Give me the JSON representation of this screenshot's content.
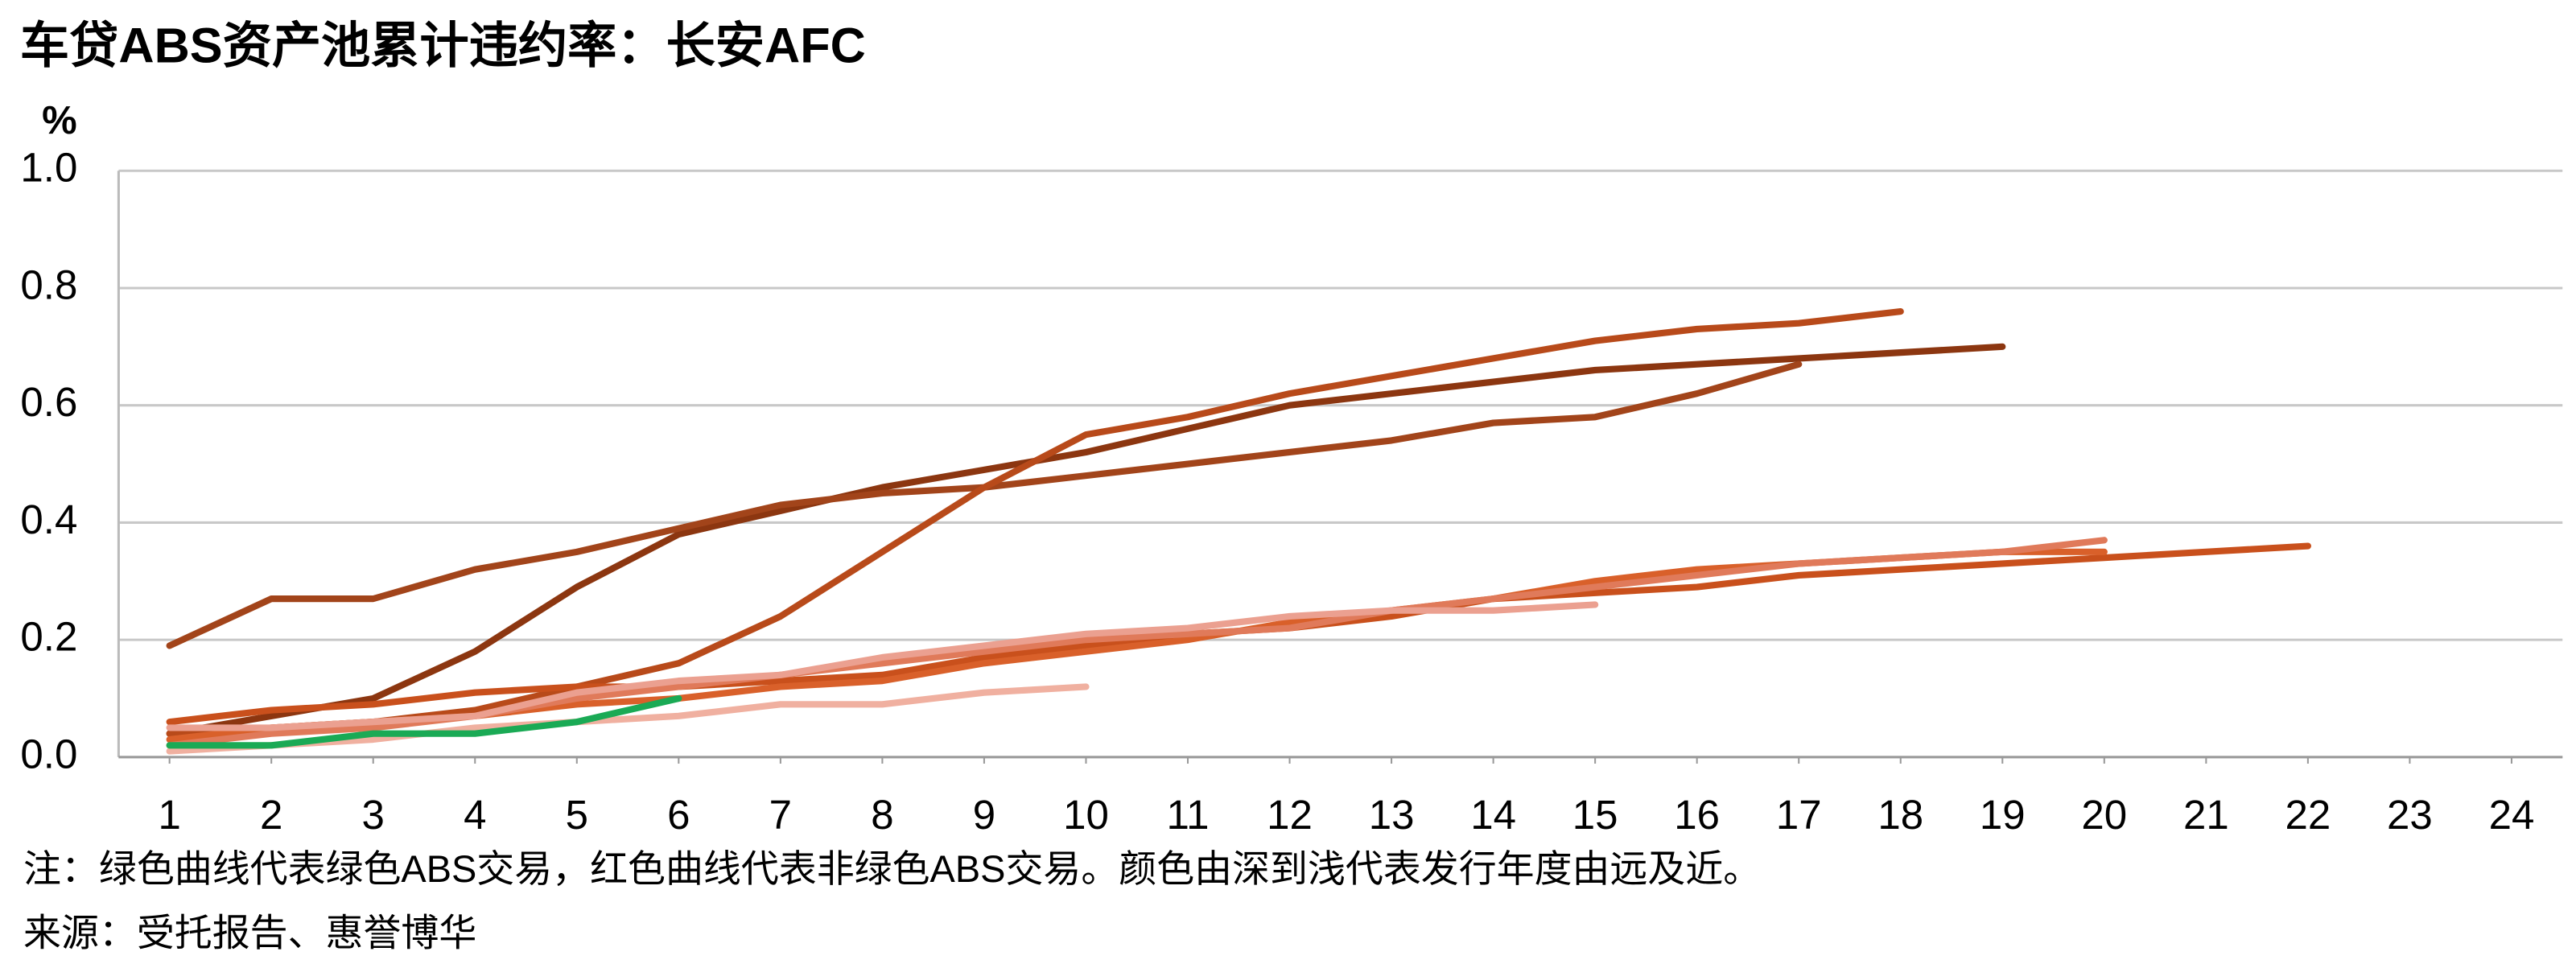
{
  "chart_data": {
    "type": "line",
    "title": "车贷ABS资产池累计违约率：长安AFC",
    "y_unit": "%",
    "note": "注：绿色曲线代表绿色ABS交易，红色曲线代表非绿色ABS交易。颜色由深到浅代表发行年度由远及近。",
    "source": "来源：受托报告、惠誉博华",
    "x": [
      1,
      2,
      3,
      4,
      5,
      6,
      7,
      8,
      9,
      10,
      11,
      12,
      13,
      14,
      15,
      16,
      17,
      18,
      19,
      20,
      21,
      22,
      23,
      24
    ],
    "xlim": [
      0.5,
      24.5
    ],
    "xticks": [
      1,
      2,
      3,
      4,
      5,
      6,
      7,
      8,
      9,
      10,
      11,
      12,
      13,
      14,
      15,
      16,
      17,
      18,
      19,
      20,
      21,
      22,
      23,
      24
    ],
    "ylim": [
      0,
      1
    ],
    "yticks": [
      {
        "value": 0,
        "label": "0.0"
      },
      0.2,
      0.4,
      0.6,
      0.8,
      {
        "value": 1,
        "label": "1.0"
      }
    ],
    "grid": true,
    "series": [
      {
        "color": "#8c3610",
        "values": [
          0.04,
          0.07,
          0.1,
          0.18,
          0.29,
          0.38,
          0.42,
          0.46,
          0.49,
          0.52,
          0.56,
          0.6,
          0.62,
          0.64,
          0.66,
          0.67,
          0.68,
          0.69,
          0.7,
          null,
          null,
          null,
          null,
          null
        ]
      },
      {
        "color": "#a2441a",
        "values": [
          0.19,
          0.27,
          0.27,
          0.32,
          0.35,
          0.39,
          0.43,
          0.45,
          0.46,
          0.48,
          0.5,
          0.52,
          0.54,
          0.57,
          0.58,
          0.62,
          0.67,
          null,
          null,
          null,
          null,
          null,
          null,
          null
        ]
      },
      {
        "color": "#b84a1a",
        "values": [
          0.04,
          0.05,
          0.06,
          0.08,
          0.12,
          0.16,
          0.24,
          0.35,
          0.46,
          0.55,
          0.58,
          0.62,
          0.65,
          0.68,
          0.71,
          0.73,
          0.74,
          0.76,
          null,
          null,
          null,
          null,
          null,
          null
        ]
      },
      {
        "color": "#c9501c",
        "values": [
          0.06,
          0.08,
          0.09,
          0.11,
          0.12,
          0.12,
          0.13,
          0.14,
          0.17,
          0.19,
          0.21,
          0.22,
          0.24,
          0.27,
          0.28,
          0.29,
          0.31,
          0.32,
          0.33,
          0.34,
          0.35,
          0.36,
          null,
          null
        ]
      },
      {
        "color": "#d9602a",
        "values": [
          0.03,
          0.05,
          0.06,
          0.07,
          0.09,
          0.1,
          0.12,
          0.13,
          0.16,
          0.18,
          0.2,
          0.23,
          0.25,
          0.27,
          0.3,
          0.32,
          0.33,
          0.34,
          0.35,
          0.35,
          null,
          null,
          null,
          null
        ]
      },
      {
        "color": "#e07a5a",
        "values": [
          0.02,
          0.04,
          0.05,
          0.07,
          0.1,
          0.12,
          0.14,
          0.16,
          0.18,
          0.2,
          0.21,
          0.22,
          0.25,
          0.27,
          0.29,
          0.31,
          0.33,
          0.34,
          0.35,
          0.37,
          null,
          null,
          null,
          null
        ]
      },
      {
        "color": "#eba090",
        "values": [
          0.05,
          0.05,
          0.06,
          0.07,
          0.11,
          0.13,
          0.14,
          0.17,
          0.19,
          0.21,
          0.22,
          0.24,
          0.25,
          0.25,
          0.26,
          null,
          null,
          null,
          null,
          null,
          null,
          null,
          null,
          null
        ]
      },
      {
        "color": "#f0b0a0",
        "values": [
          0.01,
          0.02,
          0.03,
          0.05,
          0.06,
          0.07,
          0.09,
          0.09,
          0.11,
          0.12,
          null,
          null,
          null,
          null,
          null,
          null,
          null,
          null,
          null,
          null,
          null,
          null,
          null,
          null
        ]
      },
      {
        "color": "#1aaa55",
        "values": [
          0.02,
          0.02,
          0.04,
          0.04,
          0.06,
          0.1,
          null,
          null,
          null,
          null,
          null,
          null,
          null,
          null,
          null,
          null,
          null,
          null,
          null,
          null,
          null,
          null,
          null,
          null
        ]
      }
    ]
  }
}
